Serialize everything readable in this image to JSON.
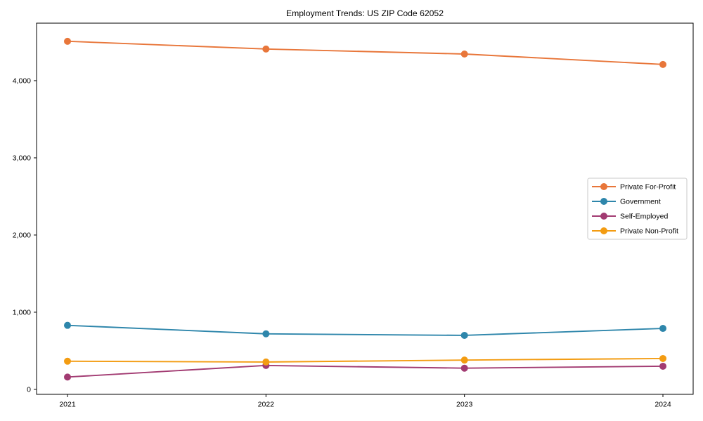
{
  "chart_data": {
    "type": "line",
    "title": "Employment Trends: US ZIP Code 62052",
    "categories": [
      "2021",
      "2022",
      "2023",
      "2024"
    ],
    "series": [
      {
        "name": "Private For-Profit",
        "color": "#E8763A",
        "values": [
          4510,
          4410,
          4345,
          4210
        ]
      },
      {
        "name": "Government",
        "color": "#2E86AB",
        "values": [
          830,
          720,
          700,
          790
        ]
      },
      {
        "name": "Self-Employed",
        "color": "#A23B72",
        "values": [
          160,
          310,
          275,
          300
        ]
      },
      {
        "name": "Private Non-Profit",
        "color": "#F39C12",
        "values": [
          365,
          355,
          380,
          400
        ]
      }
    ],
    "xlabel": "",
    "ylabel": "",
    "ylim": [
      -64,
      4745
    ],
    "yticks": [
      0,
      1000,
      2000,
      3000,
      4000
    ],
    "ytick_labels": [
      "0",
      "1,000",
      "2,000",
      "3,000",
      "4,000"
    ],
    "grid": false,
    "legend_position": "right-middle",
    "marker": "circle",
    "axis_color": "#000000",
    "legend_border_color": "#c8c8c8",
    "background_color": "#ffffff"
  }
}
